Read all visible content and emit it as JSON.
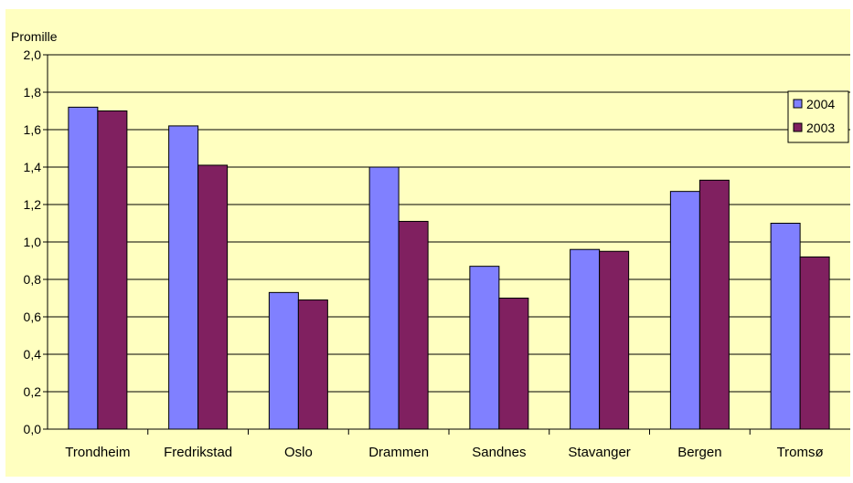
{
  "chart_data": {
    "type": "bar",
    "title": "",
    "ylabel": "Promille",
    "xlabel": "",
    "ylim": [
      0,
      2.0
    ],
    "yticks": [
      "0,0",
      "0,2",
      "0,4",
      "0,6",
      "0,8",
      "1,0",
      "1,2",
      "1,4",
      "1,6",
      "1,8",
      "2,0"
    ],
    "categories": [
      "Trondheim",
      "Fredrikstad",
      "Oslo",
      "Drammen",
      "Sandnes",
      "Stavanger",
      "Bergen",
      "Tromsø"
    ],
    "series": [
      {
        "name": "2004",
        "color": "#8080ff",
        "values": [
          1.72,
          1.62,
          0.73,
          1.4,
          0.87,
          0.96,
          1.27,
          1.1
        ]
      },
      {
        "name": "2003",
        "color": "#802060",
        "values": [
          1.7,
          1.41,
          0.69,
          1.11,
          0.7,
          0.95,
          1.33,
          0.92
        ]
      }
    ],
    "grid": true,
    "legend": "right",
    "background": "#ffffc0"
  }
}
